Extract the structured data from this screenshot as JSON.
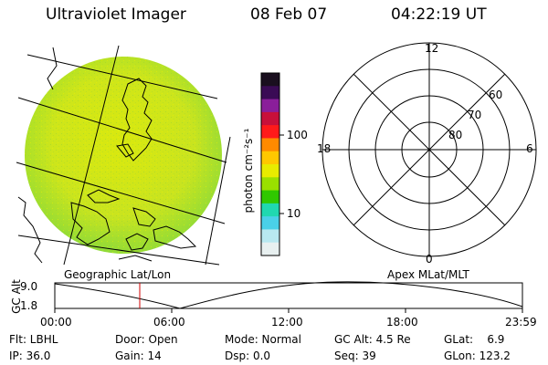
{
  "header": {
    "instrument": "Ultraviolet Imager",
    "date": "08 Feb 07",
    "time": "04:22:19 UT"
  },
  "colorbar": {
    "unit_label": "photon cm⁻²s⁻¹",
    "ticks": [
      "100",
      "10"
    ],
    "colors": [
      "#1a0f1f",
      "#3a0b55",
      "#8a1e9a",
      "#c8103a",
      "#ff1a1a",
      "#ff8a00",
      "#ffc800",
      "#e8ec00",
      "#9ae000",
      "#30c800",
      "#20d8b0",
      "#4ad0e8",
      "#b8e8f0",
      "#e8f0f0"
    ]
  },
  "map_panel": {
    "caption": "Geographic Lat/Lon"
  },
  "polar_panel": {
    "caption": "Apex MLat/MLT",
    "mlt_labels": {
      "top": "12",
      "left": "18",
      "right": "6",
      "bottom": "0"
    },
    "lat_labels": [
      "60",
      "70",
      "80"
    ]
  },
  "altitude_plot": {
    "ylabel": "GC Alt",
    "yticks": [
      "9.0",
      "1.8"
    ],
    "xticks": [
      "00:00",
      "06:00",
      "12:00",
      "18:00",
      "23:59"
    ],
    "current_time_marker": "04:22"
  },
  "info": {
    "flt": "Flt: LBHL",
    "ip": "IP: 36.0",
    "door": "Door: Open",
    "gain": "Gain: 14",
    "mode": "Mode: Normal",
    "dsp": "Dsp:    0.0",
    "gcalt": "GC Alt: 4.5 Re",
    "seq": "Seq: 39",
    "glat": "GLat:    6.9",
    "glon": "GLon: 123.2"
  }
}
